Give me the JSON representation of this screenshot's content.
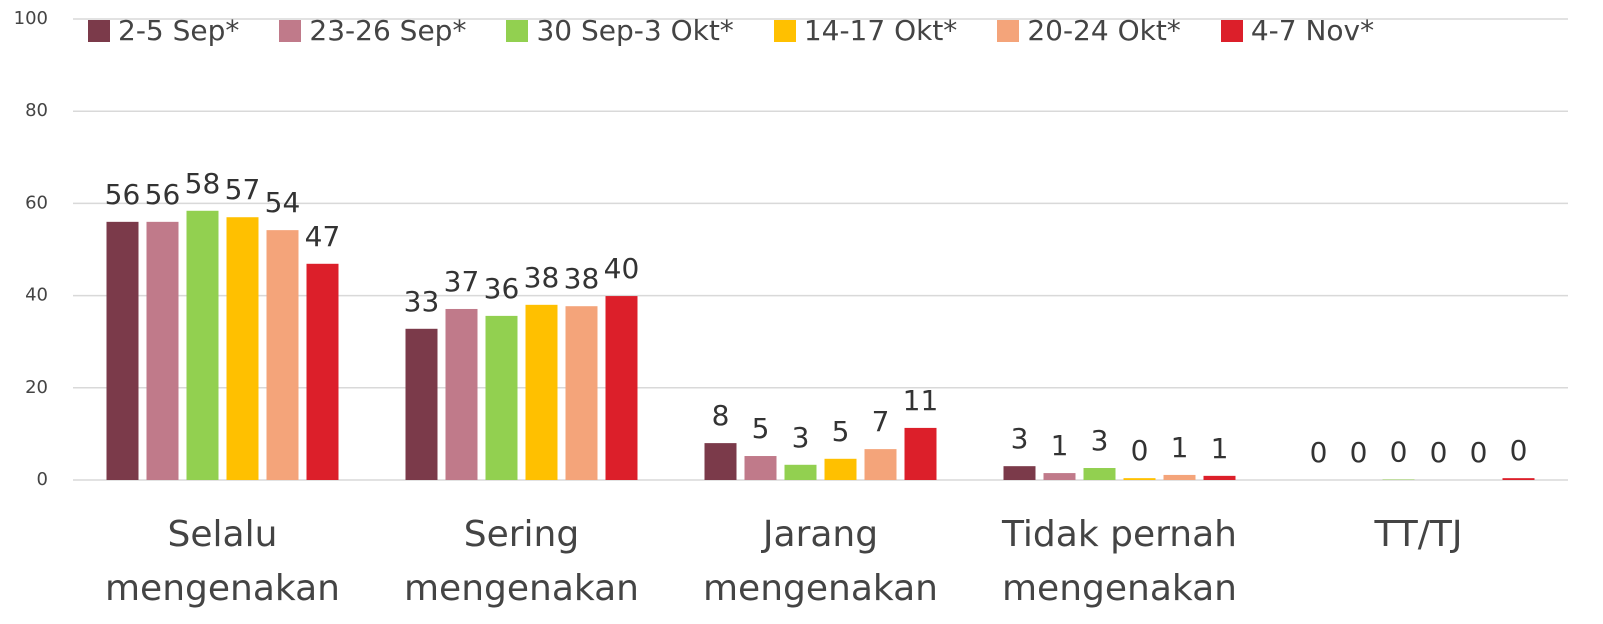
{
  "chart_data": {
    "type": "bar",
    "categories": [
      "Selalu mengenakan",
      "Sering mengenakan",
      "Jarang mengenakan",
      "Tidak pernah mengenakan",
      "TT/TJ"
    ],
    "series": [
      {
        "name": "2-5 Sep*",
        "color": "#7b3a4a",
        "values": [
          56,
          32.8,
          8,
          3,
          0
        ],
        "value_labels": [
          "56",
          "33",
          "8",
          "3",
          "0"
        ]
      },
      {
        "name": "23-26 Sep*",
        "color": "#c07a8a",
        "values": [
          56,
          37.1,
          5.2,
          1.5,
          0
        ],
        "value_labels": [
          "56",
          "37",
          "5",
          "1",
          "0"
        ]
      },
      {
        "name": "30 Sep-3 Okt*",
        "color": "#92d050",
        "values": [
          58.4,
          35.6,
          3.3,
          2.6,
          0.1
        ],
        "value_labels": [
          "58",
          "36",
          "3",
          "3",
          "0"
        ]
      },
      {
        "name": "14-17 Okt*",
        "color": "#ffc000",
        "values": [
          57,
          38,
          4.6,
          0.4,
          0
        ],
        "value_labels": [
          "57",
          "38",
          "5",
          "0",
          "0"
        ]
      },
      {
        "name": "20-24 Okt*",
        "color": "#f4a47a",
        "values": [
          54.2,
          37.7,
          6.7,
          1.1,
          0
        ],
        "value_labels": [
          "54",
          "38",
          "7",
          "1",
          "0"
        ]
      },
      {
        "name": "4-7 Nov*",
        "color": "#dc1f2a",
        "values": [
          46.9,
          39.9,
          11.3,
          0.9,
          0.4
        ],
        "value_labels": [
          "47",
          "40",
          "11",
          "1",
          "0"
        ]
      }
    ],
    "ylim": [
      0,
      100
    ],
    "yticks": [
      0,
      20,
      40,
      60,
      80,
      100
    ],
    "grid": true,
    "legend": "top"
  }
}
